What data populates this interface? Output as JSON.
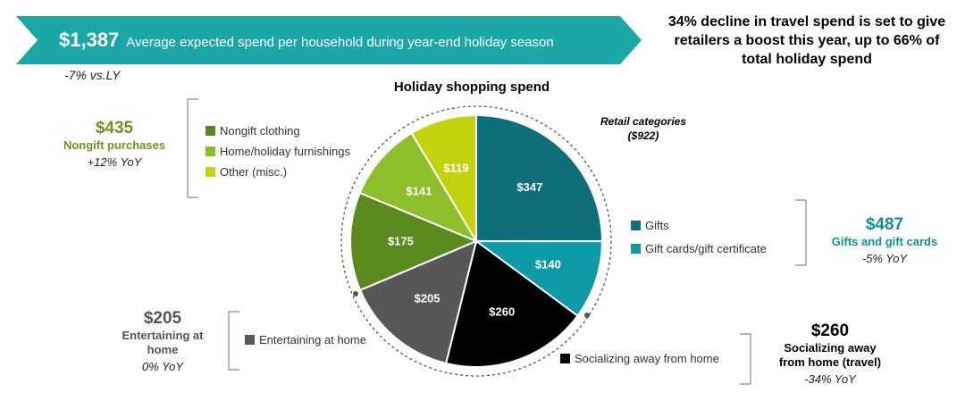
{
  "banner": {
    "amount": "$1,387",
    "description": "Average expected spend per household during year-end holiday season",
    "vs_last_year": "-7% vs.LY"
  },
  "headline": "34% decline in travel spend is set to give retailers a boost this year, up to 66% of total holiday spend",
  "colors": {
    "banner": "#1aa7a6",
    "nongift_green": "#6a961f"
  },
  "chart_data": {
    "type": "pie",
    "title": "Holiday shopping spend",
    "retail_label_line1": "Retail categories",
    "retail_label_line2": "($922)",
    "slices": [
      {
        "label": "Gifts",
        "value": 347,
        "display": "$347",
        "color": "#0e6e7a"
      },
      {
        "label": "Gift cards/gift certificate",
        "value": 140,
        "display": "$140",
        "color": "#0e9aa7"
      },
      {
        "label": "Socializing away from home",
        "value": 260,
        "display": "$260",
        "color": "#000000"
      },
      {
        "label": "Entertaining at home",
        "value": 205,
        "display": "$205",
        "color": "#575757"
      },
      {
        "label": "Nongift clothing",
        "value": 175,
        "display": "$175",
        "color": "#5b8a1e"
      },
      {
        "label": "Home/holiday furnishings",
        "value": 141,
        "display": "$141",
        "color": "#8cbf2a"
      },
      {
        "label": "Other (misc.)",
        "value": 119,
        "display": "$119",
        "color": "#c3d40f"
      }
    ]
  },
  "groups": {
    "nongift": {
      "amount": "$435",
      "name": "Nongift purchases",
      "yoy": "+12% YoY"
    },
    "gifts": {
      "amount": "$487",
      "name": "Gifts and gift cards",
      "yoy": "-5% YoY"
    },
    "entertaining": {
      "amount": "$205",
      "name_line1": "Entertaining at",
      "name_line2": "home",
      "yoy": "0% YoY"
    },
    "socializing": {
      "amount": "$260",
      "name_line1": "Socializing away",
      "name_line2": "from home (travel)",
      "yoy": "-34% YoY"
    }
  }
}
